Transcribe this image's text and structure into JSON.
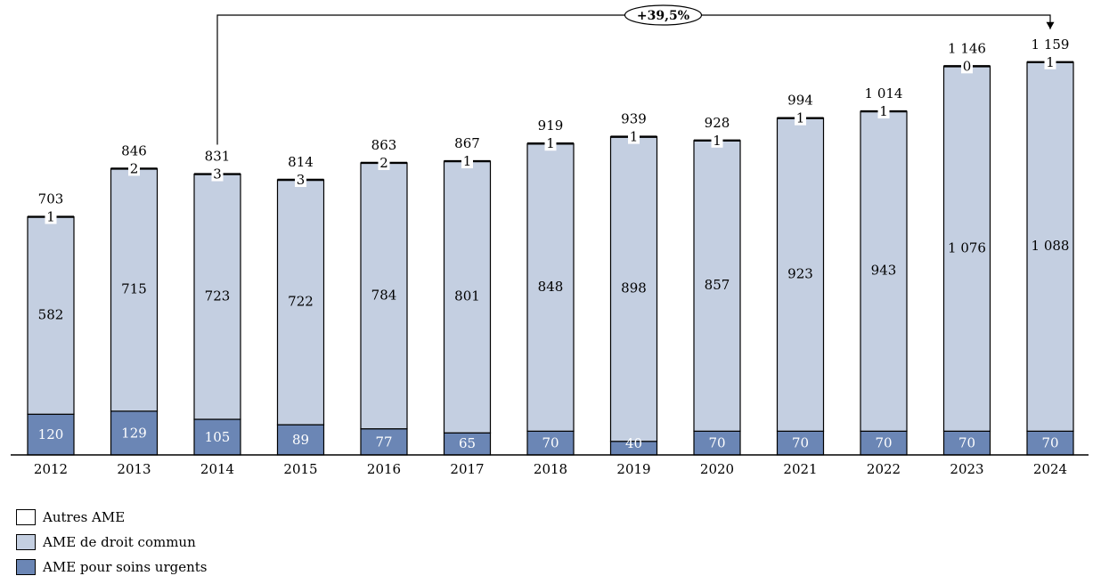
{
  "chart_data": {
    "type": "bar",
    "stacked": true,
    "categories": [
      "2012",
      "2013",
      "2014",
      "2015",
      "2016",
      "2017",
      "2018",
      "2019",
      "2020",
      "2021",
      "2022",
      "2023",
      "2024"
    ],
    "series": [
      {
        "name": "AME pour soins urgents",
        "values": [
          120,
          129,
          105,
          89,
          77,
          65,
          70,
          40,
          70,
          70,
          70,
          70,
          70
        ],
        "labels": [
          "120",
          "129",
          "105",
          "89",
          "77",
          "65",
          "70",
          "40",
          "70",
          "70",
          "70",
          "70",
          "70"
        ],
        "color": "#6b86b5"
      },
      {
        "name": "AME de droit commun",
        "values": [
          582,
          715,
          723,
          722,
          784,
          801,
          848,
          898,
          857,
          923,
          943,
          1076,
          1088
        ],
        "labels": [
          "582",
          "715",
          "723",
          "722",
          "784",
          "801",
          "848",
          "898",
          "857",
          "923",
          "943",
          "1 076",
          "1 088"
        ],
        "color": "#c4cfe1"
      },
      {
        "name": "Autres AME",
        "values": [
          1,
          2,
          3,
          3,
          2,
          1,
          1,
          1,
          1,
          1,
          1,
          0,
          1
        ],
        "labels": [
          "1",
          "2",
          "3",
          "3",
          "2",
          "1",
          "1",
          "1",
          "1",
          "1",
          "1",
          "0",
          "1"
        ],
        "color": "#ffffff"
      }
    ],
    "totals": [
      703,
      846,
      831,
      814,
      863,
      867,
      919,
      939,
      928,
      994,
      1014,
      1146,
      1159
    ],
    "total_labels": [
      "703",
      "846",
      "831",
      "814",
      "863",
      "867",
      "919",
      "939",
      "928",
      "994",
      "1 014",
      "1 146",
      "1 159"
    ],
    "ylim": [
      0,
      1250
    ],
    "legend_placement": "bottom-left",
    "grid": false,
    "annotation": {
      "text": "+39,5%",
      "from_index": 2,
      "to_index": 12
    }
  }
}
